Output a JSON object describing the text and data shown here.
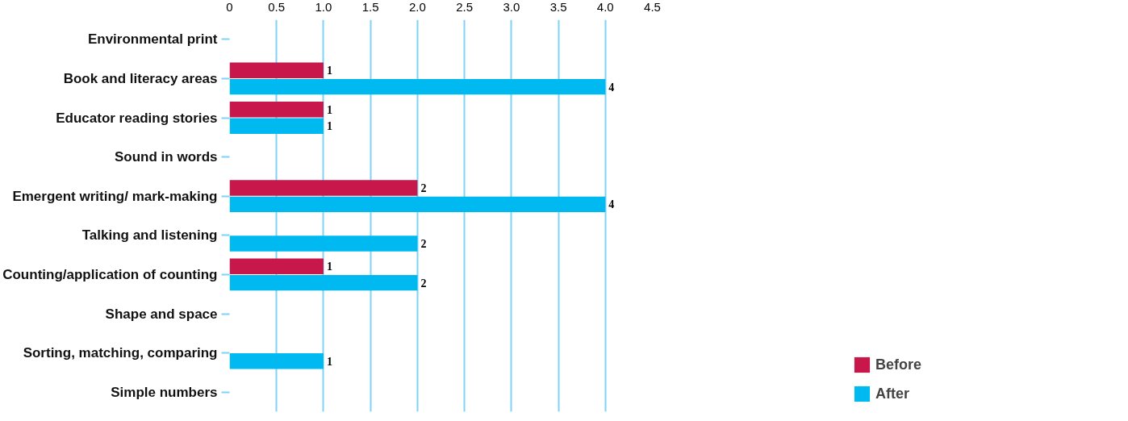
{
  "chart_data": {
    "type": "bar",
    "orientation": "horizontal",
    "categories": [
      "Environmental print",
      "Book and literacy areas",
      "Educator reading stories",
      "Sound in words",
      "Emergent writing/ mark-making",
      "Talking and listening",
      "Counting/application of counting",
      "Shape and space",
      "Sorting, matching, comparing",
      "Simple numbers"
    ],
    "series": [
      {
        "name": "Before",
        "color": "#c8174a",
        "values": [
          null,
          1,
          1,
          null,
          2,
          null,
          1,
          null,
          null,
          null
        ]
      },
      {
        "name": "After",
        "color": "#00b9f0",
        "values": [
          null,
          4,
          1,
          null,
          4,
          2,
          2,
          null,
          1,
          null
        ]
      }
    ],
    "xlim": [
      0,
      4.5
    ],
    "xticks": [
      0,
      0.5,
      {
        "value": 1,
        "label": "1.0"
      },
      1.5,
      {
        "value": 2,
        "label": "2.0"
      },
      2.5,
      {
        "value": 3,
        "label": "3.0"
      },
      3.5,
      {
        "value": 4,
        "label": "4.0"
      },
      4.5
    ],
    "grid": "x",
    "legend": "bottom right",
    "data_labels": true
  }
}
